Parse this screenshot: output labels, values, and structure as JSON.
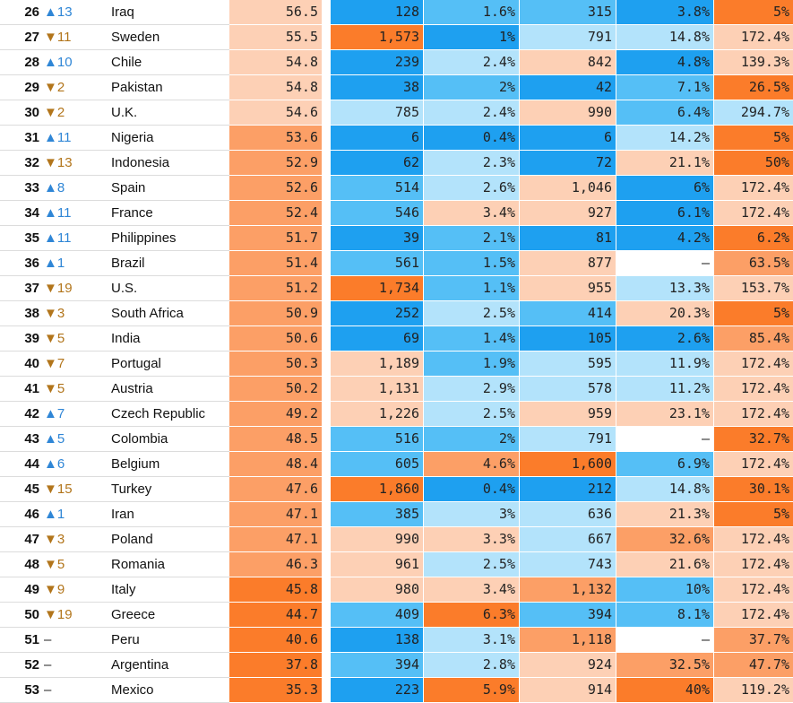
{
  "colors": {
    "orange_strong": "#fb7c2a",
    "orange_medium": "#fc9f66",
    "orange_light": "#fdd0b5",
    "blue_strong": "#1ea0f0",
    "blue_medium": "#55bff6",
    "blue_light": "#b3e3fb",
    "neutral": "#ffffff",
    "up_arrow": "#2f86d6",
    "down_arrow": "#b2751b"
  },
  "rows": [
    {
      "rank": "26",
      "change": "▲13",
      "dir": "up",
      "country": "Iraq",
      "cells": [
        {
          "v": "56.5",
          "c": "orange_light"
        },
        {
          "v": "128",
          "c": "blue_strong"
        },
        {
          "v": "1.6%",
          "c": "blue_medium"
        },
        {
          "v": "315",
          "c": "blue_medium"
        },
        {
          "v": "3.8%",
          "c": "blue_strong"
        },
        {
          "v": "5%",
          "c": "orange_strong"
        }
      ]
    },
    {
      "rank": "27",
      "change": "▼11",
      "dir": "down",
      "country": "Sweden",
      "cells": [
        {
          "v": "55.5",
          "c": "orange_light"
        },
        {
          "v": "1,573",
          "c": "orange_strong"
        },
        {
          "v": "1%",
          "c": "blue_strong"
        },
        {
          "v": "791",
          "c": "blue_light"
        },
        {
          "v": "14.8%",
          "c": "blue_light"
        },
        {
          "v": "172.4%",
          "c": "orange_light"
        }
      ]
    },
    {
      "rank": "28",
      "change": "▲10",
      "dir": "up",
      "country": "Chile",
      "cells": [
        {
          "v": "54.8",
          "c": "orange_light"
        },
        {
          "v": "239",
          "c": "blue_strong"
        },
        {
          "v": "2.4%",
          "c": "blue_light"
        },
        {
          "v": "842",
          "c": "orange_light"
        },
        {
          "v": "4.8%",
          "c": "blue_strong"
        },
        {
          "v": "139.3%",
          "c": "orange_light"
        }
      ]
    },
    {
      "rank": "29",
      "change": "▼2",
      "dir": "down",
      "country": "Pakistan",
      "cells": [
        {
          "v": "54.8",
          "c": "orange_light"
        },
        {
          "v": "38",
          "c": "blue_strong"
        },
        {
          "v": "2%",
          "c": "blue_medium"
        },
        {
          "v": "42",
          "c": "blue_strong"
        },
        {
          "v": "7.1%",
          "c": "blue_medium"
        },
        {
          "v": "26.5%",
          "c": "orange_strong"
        }
      ]
    },
    {
      "rank": "30",
      "change": "▼2",
      "dir": "down",
      "country": "U.K.",
      "cells": [
        {
          "v": "54.6",
          "c": "orange_light"
        },
        {
          "v": "785",
          "c": "blue_light"
        },
        {
          "v": "2.4%",
          "c": "blue_light"
        },
        {
          "v": "990",
          "c": "orange_light"
        },
        {
          "v": "6.4%",
          "c": "blue_medium"
        },
        {
          "v": "294.7%",
          "c": "blue_light"
        }
      ]
    },
    {
      "rank": "31",
      "change": "▲11",
      "dir": "up",
      "country": "Nigeria",
      "cells": [
        {
          "v": "53.6",
          "c": "orange_medium"
        },
        {
          "v": "6",
          "c": "blue_strong"
        },
        {
          "v": "0.4%",
          "c": "blue_strong"
        },
        {
          "v": "6",
          "c": "blue_strong"
        },
        {
          "v": "14.2%",
          "c": "blue_light"
        },
        {
          "v": "5%",
          "c": "orange_strong"
        }
      ]
    },
    {
      "rank": "32",
      "change": "▼13",
      "dir": "down",
      "country": "Indonesia",
      "cells": [
        {
          "v": "52.9",
          "c": "orange_medium"
        },
        {
          "v": "62",
          "c": "blue_strong"
        },
        {
          "v": "2.3%",
          "c": "blue_light"
        },
        {
          "v": "72",
          "c": "blue_strong"
        },
        {
          "v": "21.1%",
          "c": "orange_light"
        },
        {
          "v": "50%",
          "c": "orange_strong"
        }
      ]
    },
    {
      "rank": "33",
      "change": "▲8",
      "dir": "up",
      "country": "Spain",
      "cells": [
        {
          "v": "52.6",
          "c": "orange_medium"
        },
        {
          "v": "514",
          "c": "blue_medium"
        },
        {
          "v": "2.6%",
          "c": "blue_light"
        },
        {
          "v": "1,046",
          "c": "orange_light"
        },
        {
          "v": "6%",
          "c": "blue_strong"
        },
        {
          "v": "172.4%",
          "c": "orange_light"
        }
      ]
    },
    {
      "rank": "34",
      "change": "▲11",
      "dir": "up",
      "country": "France",
      "cells": [
        {
          "v": "52.4",
          "c": "orange_medium"
        },
        {
          "v": "546",
          "c": "blue_medium"
        },
        {
          "v": "3.4%",
          "c": "orange_light"
        },
        {
          "v": "927",
          "c": "orange_light"
        },
        {
          "v": "6.1%",
          "c": "blue_strong"
        },
        {
          "v": "172.4%",
          "c": "orange_light"
        }
      ]
    },
    {
      "rank": "35",
      "change": "▲11",
      "dir": "up",
      "country": "Philippines",
      "cells": [
        {
          "v": "51.7",
          "c": "orange_medium"
        },
        {
          "v": "39",
          "c": "blue_strong"
        },
        {
          "v": "2.1%",
          "c": "blue_medium"
        },
        {
          "v": "81",
          "c": "blue_strong"
        },
        {
          "v": "4.2%",
          "c": "blue_strong"
        },
        {
          "v": "6.2%",
          "c": "orange_strong"
        }
      ]
    },
    {
      "rank": "36",
      "change": "▲1",
      "dir": "up",
      "country": "Brazil",
      "cells": [
        {
          "v": "51.4",
          "c": "orange_medium"
        },
        {
          "v": "561",
          "c": "blue_medium"
        },
        {
          "v": "1.5%",
          "c": "blue_medium"
        },
        {
          "v": "877",
          "c": "orange_light"
        },
        {
          "v": "–",
          "c": "neutral"
        },
        {
          "v": "63.5%",
          "c": "orange_medium"
        }
      ]
    },
    {
      "rank": "37",
      "change": "▼19",
      "dir": "down",
      "country": "U.S.",
      "cells": [
        {
          "v": "51.2",
          "c": "orange_medium"
        },
        {
          "v": "1,734",
          "c": "orange_strong"
        },
        {
          "v": "1.1%",
          "c": "blue_medium"
        },
        {
          "v": "955",
          "c": "orange_light"
        },
        {
          "v": "13.3%",
          "c": "blue_light"
        },
        {
          "v": "153.7%",
          "c": "orange_light"
        }
      ]
    },
    {
      "rank": "38",
      "change": "▼3",
      "dir": "down",
      "country": "South Africa",
      "cells": [
        {
          "v": "50.9",
          "c": "orange_medium"
        },
        {
          "v": "252",
          "c": "blue_strong"
        },
        {
          "v": "2.5%",
          "c": "blue_light"
        },
        {
          "v": "414",
          "c": "blue_medium"
        },
        {
          "v": "20.3%",
          "c": "orange_light"
        },
        {
          "v": "5%",
          "c": "orange_strong"
        }
      ]
    },
    {
      "rank": "39",
      "change": "▼5",
      "dir": "down",
      "country": "India",
      "cells": [
        {
          "v": "50.6",
          "c": "orange_medium"
        },
        {
          "v": "69",
          "c": "blue_strong"
        },
        {
          "v": "1.4%",
          "c": "blue_medium"
        },
        {
          "v": "105",
          "c": "blue_strong"
        },
        {
          "v": "2.6%",
          "c": "blue_strong"
        },
        {
          "v": "85.4%",
          "c": "orange_medium"
        }
      ]
    },
    {
      "rank": "40",
      "change": "▼7",
      "dir": "down",
      "country": "Portugal",
      "cells": [
        {
          "v": "50.3",
          "c": "orange_medium"
        },
        {
          "v": "1,189",
          "c": "orange_light"
        },
        {
          "v": "1.9%",
          "c": "blue_medium"
        },
        {
          "v": "595",
          "c": "blue_light"
        },
        {
          "v": "11.9%",
          "c": "blue_light"
        },
        {
          "v": "172.4%",
          "c": "orange_light"
        }
      ]
    },
    {
      "rank": "41",
      "change": "▼5",
      "dir": "down",
      "country": "Austria",
      "cells": [
        {
          "v": "50.2",
          "c": "orange_medium"
        },
        {
          "v": "1,131",
          "c": "orange_light"
        },
        {
          "v": "2.9%",
          "c": "blue_light"
        },
        {
          "v": "578",
          "c": "blue_light"
        },
        {
          "v": "11.2%",
          "c": "blue_light"
        },
        {
          "v": "172.4%",
          "c": "orange_light"
        }
      ]
    },
    {
      "rank": "42",
      "change": "▲7",
      "dir": "up",
      "country": "Czech Republic",
      "cells": [
        {
          "v": "49.2",
          "c": "orange_medium"
        },
        {
          "v": "1,226",
          "c": "orange_light"
        },
        {
          "v": "2.5%",
          "c": "blue_light"
        },
        {
          "v": "959",
          "c": "orange_light"
        },
        {
          "v": "23.1%",
          "c": "orange_light"
        },
        {
          "v": "172.4%",
          "c": "orange_light"
        }
      ]
    },
    {
      "rank": "43",
      "change": "▲5",
      "dir": "up",
      "country": "Colombia",
      "cells": [
        {
          "v": "48.5",
          "c": "orange_medium"
        },
        {
          "v": "516",
          "c": "blue_medium"
        },
        {
          "v": "2%",
          "c": "blue_medium"
        },
        {
          "v": "791",
          "c": "blue_light"
        },
        {
          "v": "–",
          "c": "neutral"
        },
        {
          "v": "32.7%",
          "c": "orange_strong"
        }
      ]
    },
    {
      "rank": "44",
      "change": "▲6",
      "dir": "up",
      "country": "Belgium",
      "cells": [
        {
          "v": "48.4",
          "c": "orange_medium"
        },
        {
          "v": "605",
          "c": "blue_medium"
        },
        {
          "v": "4.6%",
          "c": "orange_medium"
        },
        {
          "v": "1,600",
          "c": "orange_strong"
        },
        {
          "v": "6.9%",
          "c": "blue_medium"
        },
        {
          "v": "172.4%",
          "c": "orange_light"
        }
      ]
    },
    {
      "rank": "45",
      "change": "▼15",
      "dir": "down",
      "country": "Turkey",
      "cells": [
        {
          "v": "47.6",
          "c": "orange_medium"
        },
        {
          "v": "1,860",
          "c": "orange_strong"
        },
        {
          "v": "0.4%",
          "c": "blue_strong"
        },
        {
          "v": "212",
          "c": "blue_strong"
        },
        {
          "v": "14.8%",
          "c": "blue_light"
        },
        {
          "v": "30.1%",
          "c": "orange_strong"
        }
      ]
    },
    {
      "rank": "46",
      "change": "▲1",
      "dir": "up",
      "country": "Iran",
      "cells": [
        {
          "v": "47.1",
          "c": "orange_medium"
        },
        {
          "v": "385",
          "c": "blue_medium"
        },
        {
          "v": "3%",
          "c": "blue_light"
        },
        {
          "v": "636",
          "c": "blue_light"
        },
        {
          "v": "21.3%",
          "c": "orange_light"
        },
        {
          "v": "5%",
          "c": "orange_strong"
        }
      ]
    },
    {
      "rank": "47",
      "change": "▼3",
      "dir": "down",
      "country": "Poland",
      "cells": [
        {
          "v": "47.1",
          "c": "orange_medium"
        },
        {
          "v": "990",
          "c": "orange_light"
        },
        {
          "v": "3.3%",
          "c": "orange_light"
        },
        {
          "v": "667",
          "c": "blue_light"
        },
        {
          "v": "32.6%",
          "c": "orange_medium"
        },
        {
          "v": "172.4%",
          "c": "orange_light"
        }
      ]
    },
    {
      "rank": "48",
      "change": "▼5",
      "dir": "down",
      "country": "Romania",
      "cells": [
        {
          "v": "46.3",
          "c": "orange_medium"
        },
        {
          "v": "961",
          "c": "orange_light"
        },
        {
          "v": "2.5%",
          "c": "blue_light"
        },
        {
          "v": "743",
          "c": "blue_light"
        },
        {
          "v": "21.6%",
          "c": "orange_light"
        },
        {
          "v": "172.4%",
          "c": "orange_light"
        }
      ]
    },
    {
      "rank": "49",
      "change": "▼9",
      "dir": "down",
      "country": "Italy",
      "cells": [
        {
          "v": "45.8",
          "c": "orange_strong"
        },
        {
          "v": "980",
          "c": "orange_light"
        },
        {
          "v": "3.4%",
          "c": "orange_light"
        },
        {
          "v": "1,132",
          "c": "orange_medium"
        },
        {
          "v": "10%",
          "c": "blue_medium"
        },
        {
          "v": "172.4%",
          "c": "orange_light"
        }
      ]
    },
    {
      "rank": "50",
      "change": "▼19",
      "dir": "down",
      "country": "Greece",
      "cells": [
        {
          "v": "44.7",
          "c": "orange_strong"
        },
        {
          "v": "409",
          "c": "blue_medium"
        },
        {
          "v": "6.3%",
          "c": "orange_strong"
        },
        {
          "v": "394",
          "c": "blue_medium"
        },
        {
          "v": "8.1%",
          "c": "blue_medium"
        },
        {
          "v": "172.4%",
          "c": "orange_light"
        }
      ]
    },
    {
      "rank": "51",
      "change": "–",
      "dir": "none",
      "country": "Peru",
      "cells": [
        {
          "v": "40.6",
          "c": "orange_strong"
        },
        {
          "v": "138",
          "c": "blue_strong"
        },
        {
          "v": "3.1%",
          "c": "blue_light"
        },
        {
          "v": "1,118",
          "c": "orange_medium"
        },
        {
          "v": "–",
          "c": "neutral"
        },
        {
          "v": "37.7%",
          "c": "orange_medium"
        }
      ]
    },
    {
      "rank": "52",
      "change": "–",
      "dir": "none",
      "country": "Argentina",
      "cells": [
        {
          "v": "37.8",
          "c": "orange_strong"
        },
        {
          "v": "394",
          "c": "blue_medium"
        },
        {
          "v": "2.8%",
          "c": "blue_light"
        },
        {
          "v": "924",
          "c": "orange_light"
        },
        {
          "v": "32.5%",
          "c": "orange_medium"
        },
        {
          "v": "47.7%",
          "c": "orange_medium"
        }
      ]
    },
    {
      "rank": "53",
      "change": "–",
      "dir": "none",
      "country": "Mexico",
      "cells": [
        {
          "v": "35.3",
          "c": "orange_strong"
        },
        {
          "v": "223",
          "c": "blue_strong"
        },
        {
          "v": "5.9%",
          "c": "orange_strong"
        },
        {
          "v": "914",
          "c": "orange_light"
        },
        {
          "v": "40%",
          "c": "orange_strong"
        },
        {
          "v": "119.2%",
          "c": "orange_light"
        }
      ]
    }
  ]
}
